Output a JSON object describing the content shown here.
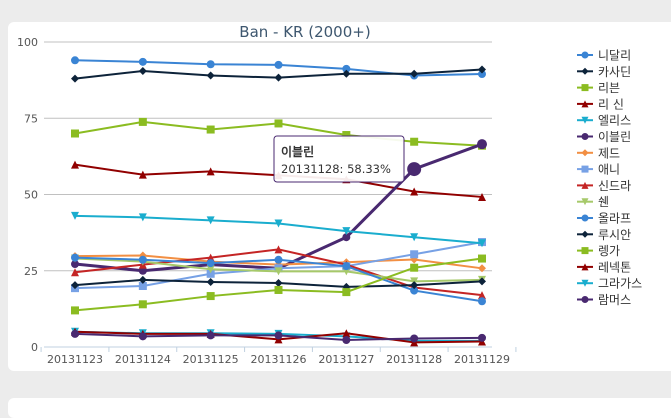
{
  "chart_data": {
    "type": "line",
    "title": "Ban - KR (2000+)",
    "xlabel": "",
    "ylabel": "",
    "ylim": [
      0,
      100
    ],
    "yticks": [
      "0",
      "25",
      "50",
      "75",
      "100"
    ],
    "categories": [
      "20131123",
      "20131124",
      "20131125",
      "20131126",
      "20131127",
      "20131128",
      "20131129"
    ],
    "legend_position": "right",
    "series": [
      {
        "name": "니달리",
        "color": "#3a84d4",
        "marker": "circle",
        "values": [
          94,
          93.5,
          92.7,
          92.5,
          91.2,
          89,
          89.5
        ]
      },
      {
        "name": "카사딘",
        "color": "#0d233a",
        "marker": "diamond",
        "values": [
          88,
          90.5,
          89,
          88.3,
          89.6,
          89.6,
          91
        ]
      },
      {
        "name": "리븐",
        "color": "#8bbc21",
        "marker": "square",
        "values": [
          70,
          73.8,
          71.3,
          73.3,
          69.5,
          67.3,
          66
        ]
      },
      {
        "name": "리 신",
        "color": "#910000",
        "marker": "triangle",
        "values": [
          59.8,
          56.5,
          57.6,
          56.3,
          55,
          51,
          49.2
        ]
      },
      {
        "name": "엘리스",
        "color": "#1aadce",
        "marker": "triangle-down",
        "values": [
          5,
          4.5,
          4.5,
          4.3,
          3.5,
          2,
          2
        ]
      },
      {
        "name": "이블린",
        "color": "#492970",
        "marker": "circle",
        "values": [
          27.2,
          25,
          27,
          25.8,
          36,
          58.33,
          66.5
        ]
      },
      {
        "name": "제드",
        "color": "#f28f43",
        "marker": "diamond",
        "values": [
          29.8,
          30,
          28,
          27,
          27.8,
          28.7,
          25.8
        ]
      },
      {
        "name": "애니",
        "color": "#77a1e5",
        "marker": "square",
        "values": [
          19.3,
          20,
          24,
          25.8,
          26.5,
          30.4,
          34.4
        ]
      },
      {
        "name": "신드라",
        "color": "#c42525",
        "marker": "triangle",
        "values": [
          24.5,
          27,
          29.3,
          32,
          27,
          19.5,
          17
        ]
      },
      {
        "name": "쉔",
        "color": "#a6c96a",
        "marker": "triangle-down",
        "values": [
          29,
          28,
          25.5,
          24.8,
          24.8,
          21.5,
          22
        ]
      },
      {
        "name": "올라프",
        "color": "#3a84d4",
        "marker": "circle",
        "values": [
          29.3,
          28.6,
          27.5,
          28.6,
          26.5,
          18.5,
          15
        ]
      },
      {
        "name": "루시안",
        "color": "#0d233a",
        "marker": "diamond",
        "values": [
          20.3,
          22,
          21.3,
          21,
          19.7,
          20.3,
          21.5
        ]
      },
      {
        "name": "렝가",
        "color": "#8bbc21",
        "marker": "square",
        "values": [
          12,
          14,
          16.7,
          18.7,
          18,
          26,
          29
        ]
      },
      {
        "name": "레넥톤",
        "color": "#910000",
        "marker": "triangle",
        "values": [
          5,
          4.3,
          4.3,
          2.5,
          4.5,
          1.5,
          1.8
        ]
      },
      {
        "name": "그라가스",
        "color": "#1aadce",
        "marker": "triangle-down",
        "values": [
          43,
          42.5,
          41.5,
          40.5,
          38,
          36,
          34
        ]
      },
      {
        "name": "람머스",
        "color": "#492970",
        "marker": "circle",
        "values": [
          4.3,
          3.5,
          3.8,
          3.8,
          2.3,
          2.8,
          3
        ]
      }
    ],
    "tooltip": {
      "series": "이블린",
      "text": "20131128: 58.33%",
      "series_index": 5,
      "point_index": 5
    }
  }
}
